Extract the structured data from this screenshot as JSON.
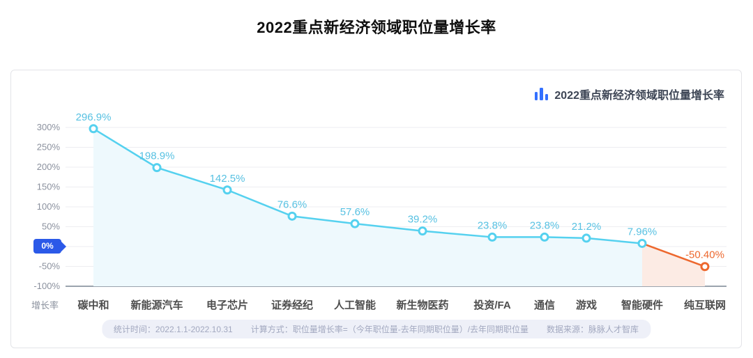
{
  "page": {
    "title": "2022重点新经济领域职位量增长率"
  },
  "chart": {
    "legend_title": "2022重点新经济领域职位量增长率",
    "zero_tag_label": "0%",
    "ylabel": "增长率"
  },
  "chart_data": {
    "type": "line",
    "title": "2022重点新经济领域职位量增长率",
    "categories": [
      "碳中和",
      "新能源汽车",
      "电子芯片",
      "证券经纪",
      "人工智能",
      "新生物医药",
      "投资/FA",
      "通信",
      "游戏",
      "智能硬件",
      "纯互联网"
    ],
    "values": [
      296.9,
      198.9,
      142.5,
      76.6,
      57.6,
      39.2,
      23.8,
      23.8,
      21.2,
      7.96,
      -50.4
    ],
    "point_labels": [
      "296.9%",
      "198.9%",
      "142.5%",
      "76.6%",
      "57.6%",
      "39.2%",
      "23.8%",
      "23.8%",
      "21.2%",
      "7.96%",
      "-50.40%"
    ],
    "xlabel": "",
    "ylabel": "增长率",
    "ylim": [
      -100,
      300
    ],
    "yticks": [
      {
        "value": 300,
        "label": "300%"
      },
      {
        "value": 250,
        "label": "250%"
      },
      {
        "value": 200,
        "label": "200%"
      },
      {
        "value": 150,
        "label": "150%"
      },
      {
        "value": 100,
        "label": "100%"
      },
      {
        "value": 50,
        "label": "50%"
      },
      {
        "value": 0,
        "label": "0%"
      },
      {
        "value": -50,
        "label": "-50%"
      },
      {
        "value": -100,
        "label": "-100%"
      }
    ],
    "grid": true,
    "legend_position": "top-right",
    "colors": {
      "line": "#55d1ef",
      "line_negative": "#ed682e",
      "area": "#eef9fd",
      "area_negative": "#fcebe4",
      "point_fill": "#ffffff",
      "data_label": "#57c1e2",
      "data_label_negative": "#ed682e",
      "zero_tag_bg": "#2b59e8",
      "legend_icon": "#3370ff",
      "gridline": "#ededf1",
      "baseline": "#9aa3ad"
    }
  },
  "footer": {
    "stat_time": "统计时间：2022.1.1-2022.10.31",
    "calc": "计算方式：职位量增长率=（今年职位量-去年同期职位量）/去年同期职位量",
    "source": "数据来源：脉脉人才智库"
  }
}
